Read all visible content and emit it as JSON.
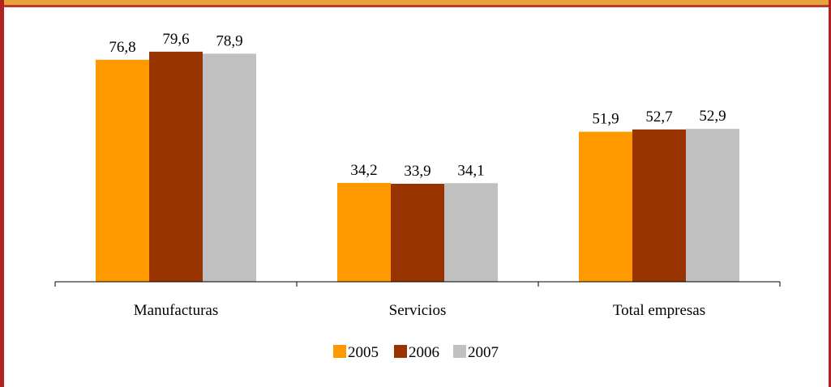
{
  "colors": {
    "frame_top": "#e8a33c",
    "frame_edge": "#b22222",
    "axis": "#000000"
  },
  "chart_data": {
    "type": "bar",
    "categories": [
      "Manufacturas",
      "Servicios",
      "Total empresas"
    ],
    "series": [
      {
        "name": "2005",
        "color": "#ff9900",
        "values": [
          76.8,
          34.2,
          51.9
        ],
        "labels": [
          "76,8",
          "34,2",
          "51,9"
        ]
      },
      {
        "name": "2006",
        "color": "#993300",
        "values": [
          79.6,
          33.9,
          52.7
        ],
        "labels": [
          "79,6",
          "33,9",
          "52,7"
        ]
      },
      {
        "name": "2007",
        "color": "#c0c0c0",
        "values": [
          78.9,
          34.1,
          52.9
        ],
        "labels": [
          "78,9",
          "34,1",
          "52,9"
        ]
      }
    ],
    "ylim": [
      0,
      100
    ],
    "grid": false,
    "legend_position": "bottom",
    "title": "",
    "xlabel": "",
    "ylabel": ""
  }
}
